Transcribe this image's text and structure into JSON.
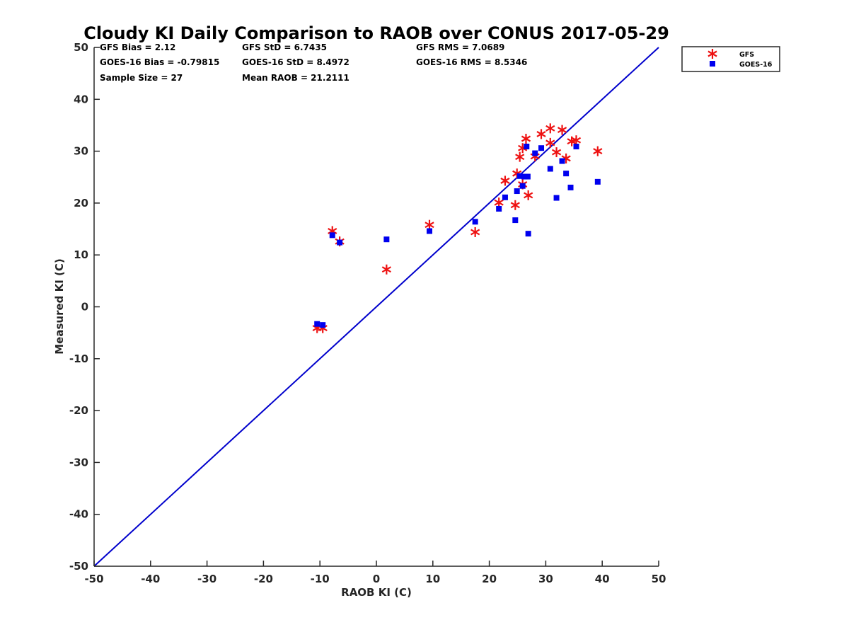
{
  "chart_data": {
    "type": "scatter",
    "title": "Cloudy KI Daily Comparison to RAOB over CONUS 2017-05-29",
    "xlabel": "RAOB KI (C)",
    "ylabel": "Measured KI (C)",
    "xlim": [
      -50,
      50
    ],
    "ylim": [
      -50,
      50
    ],
    "xticks": [
      "-50",
      "-40",
      "-30",
      "-20",
      "-10",
      "0",
      "10",
      "20",
      "30",
      "40",
      "50"
    ],
    "yticks": [
      "50",
      "40",
      "30",
      "20",
      "10",
      "0",
      "-10",
      "-20",
      "-30",
      "-40",
      "-50"
    ],
    "grid": false,
    "legend_position": "outside top-right",
    "reference_line": {
      "type": "one-to-one",
      "color": "#0000cc"
    },
    "stats": [
      [
        "GFS Bias = 2.12",
        "GFS StD = 6.7435",
        "GFS RMS = 7.0689"
      ],
      [
        "GOES-16 Bias = -0.79815",
        "GOES-16 StD = 8.4972",
        "GOES-16 RMS = 8.5346"
      ],
      [
        "Sample Size = 27",
        "Mean RAOB = 21.2111",
        ""
      ]
    ],
    "series": [
      {
        "name": "GFS",
        "marker": "asterisk",
        "color": "#ee1111",
        "points": [
          [
            -10.5,
            -4.1
          ],
          [
            -9.5,
            -4.1
          ],
          [
            -7.8,
            14.6
          ],
          [
            -6.5,
            12.6
          ],
          [
            1.8,
            7.2
          ],
          [
            9.4,
            15.8
          ],
          [
            17.5,
            14.4
          ],
          [
            21.7,
            20.1
          ],
          [
            22.8,
            24.3
          ],
          [
            24.6,
            19.6
          ],
          [
            24.9,
            25.7
          ],
          [
            25.4,
            28.9
          ],
          [
            25.9,
            23.6
          ],
          [
            25.9,
            30.6
          ],
          [
            26.5,
            32.4
          ],
          [
            26.9,
            21.5
          ],
          [
            28.1,
            29.0
          ],
          [
            29.2,
            33.3
          ],
          [
            30.8,
            31.6
          ],
          [
            30.8,
            34.4
          ],
          [
            31.9,
            29.8
          ],
          [
            32.9,
            34.1
          ],
          [
            33.6,
            28.6
          ],
          [
            34.6,
            31.9
          ],
          [
            35.4,
            32.1
          ],
          [
            39.2,
            30.0
          ]
        ]
      },
      {
        "name": "GOES-16",
        "marker": "square",
        "color": "#0000ee",
        "points": [
          [
            -10.5,
            -3.3
          ],
          [
            -9.5,
            -3.5
          ],
          [
            -7.8,
            13.8
          ],
          [
            -6.5,
            12.4
          ],
          [
            1.8,
            13.0
          ],
          [
            9.4,
            14.6
          ],
          [
            17.5,
            16.4
          ],
          [
            21.7,
            18.9
          ],
          [
            22.8,
            21.1
          ],
          [
            24.6,
            16.7
          ],
          [
            24.9,
            22.3
          ],
          [
            25.4,
            25.2
          ],
          [
            25.9,
            23.3
          ],
          [
            26.2,
            25.1
          ],
          [
            26.6,
            30.9
          ],
          [
            26.8,
            25.1
          ],
          [
            26.9,
            14.1
          ],
          [
            28.1,
            29.6
          ],
          [
            29.2,
            30.6
          ],
          [
            30.8,
            26.6
          ],
          [
            31.9,
            21.0
          ],
          [
            32.9,
            28.1
          ],
          [
            33.6,
            25.7
          ],
          [
            34.4,
            23.0
          ],
          [
            35.4,
            30.9
          ],
          [
            39.2,
            24.1
          ]
        ]
      }
    ]
  }
}
